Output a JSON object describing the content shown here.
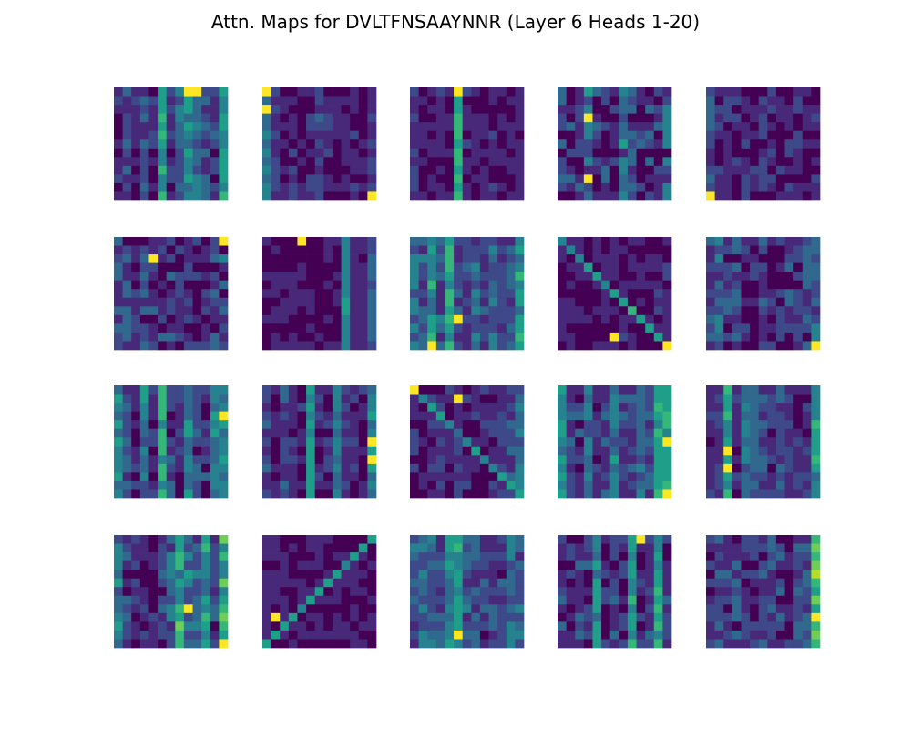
{
  "chart_data": {
    "type": "heatmap",
    "title": "Attn. Maps for DVLTFNSAAYNNR (Layer 6 Heads 1-20)",
    "sequence": "DVLTFNSAAYNNR",
    "layer": 6,
    "layout": {
      "rows": 4,
      "cols": 5
    },
    "colormap": [
      "#440154",
      "#482878",
      "#3e4989",
      "#31688e",
      "#26828e",
      "#1f9e89",
      "#35b779",
      "#6ece58",
      "#b5de2b",
      "#fde725"
    ],
    "value_range": [
      0,
      1
    ],
    "axes_visible": false,
    "heads": [
      {
        "head": 1,
        "col_weights": [
          0.05,
          0.2,
          0.05,
          0.15,
          0.08,
          0.55,
          0.1,
          0.3,
          0.45,
          0.3,
          0.25,
          0.15,
          0.55
        ],
        "diag": 0.0,
        "noise": 0.15,
        "peaks": [
          [
            0,
            8
          ],
          [
            0,
            9
          ]
        ]
      },
      {
        "head": 2,
        "col_weights": [
          0.4,
          0.15,
          0.05,
          0.1,
          0.05,
          0.1,
          0.2,
          0.1,
          0.05,
          0.05,
          0.1,
          0.05,
          0.15
        ],
        "diag": 0.0,
        "noise": 0.1,
        "peaks": [
          [
            0,
            0
          ],
          [
            2,
            0
          ],
          [
            12,
            12
          ]
        ]
      },
      {
        "head": 3,
        "col_weights": [
          0.15,
          0.05,
          0.05,
          0.1,
          0.05,
          0.65,
          0.1,
          0.05,
          0.05,
          0.1,
          0.05,
          0.05,
          0.1
        ],
        "diag": 0.0,
        "noise": 0.08,
        "peaks": [
          [
            0,
            5
          ]
        ]
      },
      {
        "head": 4,
        "col_weights": [
          0.15,
          0.1,
          0.15,
          0.3,
          0.15,
          0.2,
          0.1,
          0.3,
          0.15,
          0.1,
          0.1,
          0.1,
          0.25
        ],
        "diag": 0.0,
        "noise": 0.25,
        "peaks": [
          [
            10,
            3
          ],
          [
            3,
            3
          ]
        ]
      },
      {
        "head": 5,
        "col_weights": [
          0.3,
          0.1,
          0.1,
          0.05,
          0.1,
          0.05,
          0.15,
          0.1,
          0.05,
          0.05,
          0.1,
          0.05,
          0.05
        ],
        "diag": 0.0,
        "noise": 0.15,
        "peaks": [
          [
            12,
            0
          ]
        ]
      },
      {
        "head": 6,
        "col_weights": [
          0.2,
          0.2,
          0.1,
          0.2,
          0.15,
          0.1,
          0.15,
          0.1,
          0.15,
          0.1,
          0.1,
          0.2,
          0.2
        ],
        "diag": 0.0,
        "noise": 0.2,
        "peaks": [
          [
            2,
            4
          ],
          [
            0,
            12
          ]
        ]
      },
      {
        "head": 7,
        "col_weights": [
          0.05,
          0.05,
          0.05,
          0.05,
          0.05,
          0.05,
          0.05,
          0.05,
          0.05,
          0.45,
          0.1,
          0.1,
          0.3
        ],
        "diag": 0.0,
        "noise": 0.06,
        "peaks": [
          [
            0,
            4
          ]
        ]
      },
      {
        "head": 8,
        "col_weights": [
          0.35,
          0.3,
          0.5,
          0.25,
          0.6,
          0.2,
          0.2,
          0.3,
          0.2,
          0.3,
          0.2,
          0.25,
          0.5
        ],
        "diag": 0.0,
        "noise": 0.15,
        "peaks": [
          [
            9,
            5
          ],
          [
            12,
            2
          ]
        ]
      },
      {
        "head": 9,
        "col_weights": [
          0.05,
          0.05,
          0.05,
          0.05,
          0.05,
          0.05,
          0.05,
          0.05,
          0.05,
          0.05,
          0.05,
          0.1,
          0.1
        ],
        "diag": 0.45,
        "noise": 0.12,
        "peaks": [
          [
            11,
            6
          ],
          [
            12,
            12
          ]
        ]
      },
      {
        "head": 10,
        "col_weights": [
          0.15,
          0.25,
          0.15,
          0.2,
          0.05,
          0.1,
          0.15,
          0.05,
          0.1,
          0.2,
          0.1,
          0.2,
          0.3
        ],
        "diag": 0.0,
        "noise": 0.18,
        "peaks": [
          [
            12,
            12
          ]
        ]
      },
      {
        "head": 11,
        "col_weights": [
          0.45,
          0.2,
          0.1,
          0.4,
          0.15,
          0.55,
          0.2,
          0.1,
          0.45,
          0.2,
          0.15,
          0.4,
          0.45
        ],
        "diag": 0.0,
        "noise": 0.15,
        "peaks": [
          [
            3,
            12
          ]
        ]
      },
      {
        "head": 12,
        "col_weights": [
          0.2,
          0.05,
          0.2,
          0.15,
          0.1,
          0.55,
          0.1,
          0.1,
          0.4,
          0.15,
          0.1,
          0.1,
          0.45
        ],
        "diag": 0.0,
        "noise": 0.1,
        "peaks": [
          [
            6,
            12
          ],
          [
            8,
            12
          ]
        ]
      },
      {
        "head": 13,
        "col_weights": [
          0.1,
          0.05,
          0.1,
          0.1,
          0.1,
          0.15,
          0.1,
          0.1,
          0.1,
          0.1,
          0.15,
          0.2,
          0.3
        ],
        "diag": 0.35,
        "noise": 0.12,
        "peaks": [
          [
            0,
            0
          ],
          [
            1,
            5
          ]
        ]
      },
      {
        "head": 14,
        "col_weights": [
          0.45,
          0.2,
          0.15,
          0.35,
          0.15,
          0.2,
          0.4,
          0.2,
          0.15,
          0.3,
          0.2,
          0.6,
          0.55
        ],
        "diag": 0.0,
        "noise": 0.15,
        "peaks": [
          [
            6,
            12
          ],
          [
            12,
            12
          ]
        ]
      },
      {
        "head": 15,
        "col_weights": [
          0.15,
          0.15,
          0.55,
          0.1,
          0.35,
          0.3,
          0.25,
          0.15,
          0.25,
          0.15,
          0.15,
          0.15,
          0.5
        ],
        "diag": 0.0,
        "noise": 0.12,
        "peaks": [
          [
            9,
            2
          ],
          [
            7,
            2
          ]
        ]
      },
      {
        "head": 16,
        "col_weights": [
          0.4,
          0.15,
          0.15,
          0.1,
          0.1,
          0.15,
          0.3,
          0.55,
          0.35,
          0.3,
          0.45,
          0.2,
          0.6
        ],
        "diag": 0.0,
        "noise": 0.18,
        "peaks": [
          [
            8,
            8
          ],
          [
            12,
            12
          ]
        ]
      },
      {
        "head": 17,
        "col_weights": [
          0.1,
          0.08,
          0.05,
          0.05,
          0.05,
          0.05,
          0.05,
          0.05,
          0.05,
          0.05,
          0.05,
          0.05,
          0.05
        ],
        "diag": -0.5,
        "noise": 0.08,
        "peaks": [
          [
            9,
            1
          ]
        ]
      },
      {
        "head": 18,
        "col_weights": [
          0.3,
          0.35,
          0.3,
          0.25,
          0.45,
          0.55,
          0.25,
          0.2,
          0.2,
          0.2,
          0.15,
          0.35,
          0.3
        ],
        "diag": 0.0,
        "noise": 0.15,
        "peaks": [
          [
            11,
            5
          ]
        ]
      },
      {
        "head": 19,
        "col_weights": [
          0.15,
          0.1,
          0.2,
          0.15,
          0.45,
          0.1,
          0.15,
          0.1,
          0.6,
          0.1,
          0.15,
          0.5,
          0.15
        ],
        "diag": 0.0,
        "noise": 0.15,
        "peaks": [
          [
            0,
            9
          ]
        ]
      },
      {
        "head": 20,
        "col_weights": [
          0.15,
          0.25,
          0.15,
          0.2,
          0.1,
          0.15,
          0.15,
          0.2,
          0.15,
          0.1,
          0.2,
          0.25,
          0.7
        ],
        "diag": 0.0,
        "noise": 0.15,
        "peaks": [
          [
            9,
            12
          ]
        ]
      }
    ]
  }
}
